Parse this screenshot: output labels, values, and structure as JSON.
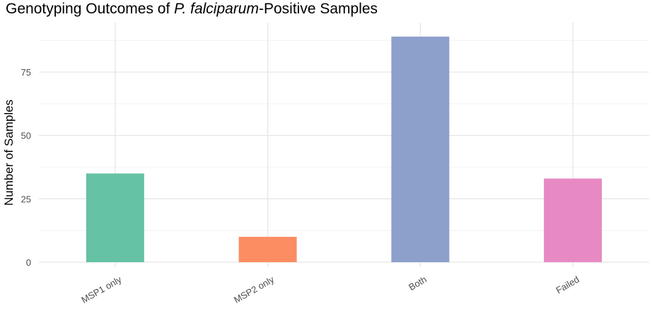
{
  "chart_data": {
    "type": "bar",
    "title_parts": [
      {
        "text": "Genotyping Outcomes of ",
        "italic": false
      },
      {
        "text": "P. falciparum",
        "italic": true
      },
      {
        "text": "-Positive Samples",
        "italic": false
      }
    ],
    "xlabel": "",
    "ylabel": "Number of Samples",
    "categories": [
      "MSP1 only",
      "MSP2 only",
      "Both",
      "Failed"
    ],
    "values": [
      35,
      10,
      89,
      33
    ],
    "colors": [
      "#66c2a5",
      "#fc8d62",
      "#8da0cb",
      "#e78ac3"
    ],
    "yticks": [
      0,
      25,
      50,
      75
    ],
    "ylim": [
      0,
      93
    ],
    "grid": true,
    "legend": "none"
  }
}
